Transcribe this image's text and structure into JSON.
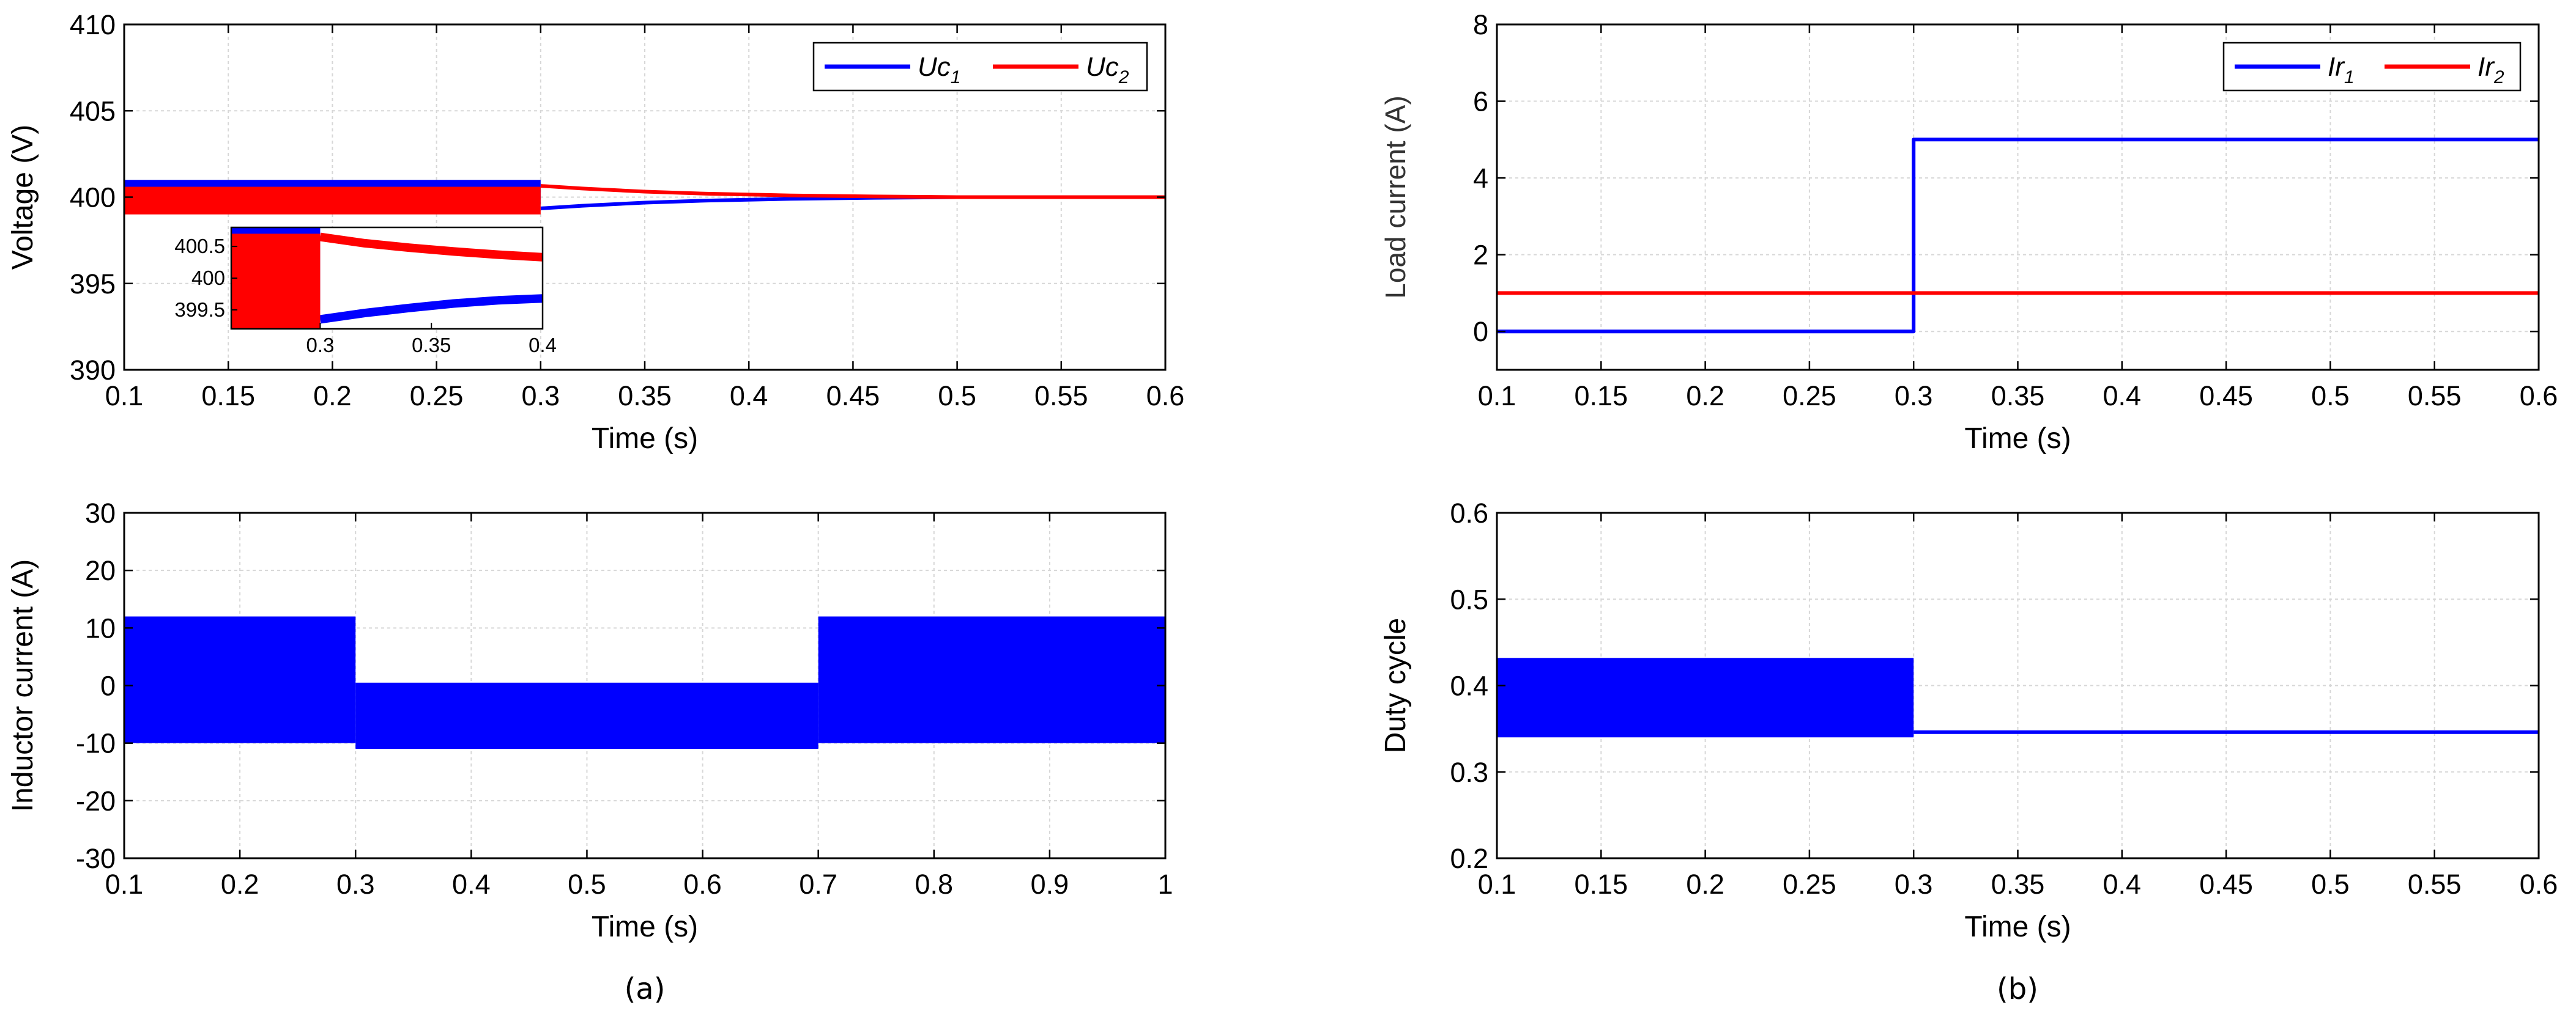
{
  "chart_data": [
    {
      "id": "voltage",
      "type": "line",
      "title": "",
      "xlabel": "Time (s)",
      "ylabel": "Voltage (V)",
      "xlim": [
        0.1,
        0.6
      ],
      "ylim": [
        390,
        410
      ],
      "xticks": [
        0.1,
        0.15,
        0.2,
        0.25,
        0.3,
        0.35,
        0.4,
        0.45,
        0.5,
        0.55,
        0.6
      ],
      "yticks": [
        390,
        395,
        400,
        405,
        410
      ],
      "xtick_labels": [
        "0.1",
        "0.15",
        "0.2",
        "0.25",
        "0.3",
        "0.35",
        "0.4",
        "0.45",
        "0.5",
        "0.55",
        "0.6"
      ],
      "ytick_labels": [
        "390",
        "395",
        "400",
        "405",
        "410"
      ],
      "grid": true,
      "legend": "top-right",
      "series": [
        {
          "name": "Uc",
          "sub": "1",
          "color": "#0000ff",
          "bands": [
            {
              "x0": 0.1,
              "x1": 0.3,
              "ymin": 399.6,
              "ymax": 401.0
            }
          ],
          "x": [
            0.3,
            0.32,
            0.35,
            0.38,
            0.42,
            0.46,
            0.5,
            0.6
          ],
          "values": [
            399.35,
            399.5,
            399.68,
            399.8,
            399.9,
            399.96,
            400.0,
            400.0
          ]
        },
        {
          "name": "Uc",
          "sub": "2",
          "color": "#ff0000",
          "bands": [
            {
              "x0": 0.1,
              "x1": 0.3,
              "ymin": 399.0,
              "ymax": 400.6
            }
          ],
          "x": [
            0.3,
            0.32,
            0.35,
            0.38,
            0.42,
            0.46,
            0.5,
            0.6
          ],
          "values": [
            400.65,
            400.5,
            400.32,
            400.2,
            400.1,
            400.04,
            400.0,
            400.0
          ]
        }
      ],
      "inset": {
        "xlim": [
          0.26,
          0.4
        ],
        "ylim": [
          399.2,
          400.8
        ],
        "xticks": [
          0.3,
          0.35,
          0.4
        ],
        "xtick_labels": [
          "0.3",
          "0.35",
          "0.4"
        ],
        "yticks": [
          399.5,
          400,
          400.5
        ],
        "ytick_labels": [
          "399.5",
          "400",
          "400.5"
        ],
        "series": [
          {
            "name": "Uc1",
            "color": "#0000ff",
            "bands": [
              {
                "x0": 0.26,
                "x1": 0.3,
                "ymin": 399.5,
                "ymax": 400.8
              }
            ],
            "x": [
              0.3,
              0.32,
              0.34,
              0.36,
              0.38,
              0.4
            ],
            "values": [
              399.35,
              399.45,
              399.53,
              399.6,
              399.65,
              399.68
            ]
          },
          {
            "name": "Uc2",
            "color": "#ff0000",
            "bands": [
              {
                "x0": 0.26,
                "x1": 0.3,
                "ymin": 399.2,
                "ymax": 400.7
              }
            ],
            "x": [
              0.3,
              0.32,
              0.34,
              0.36,
              0.38,
              0.4
            ],
            "values": [
              400.65,
              400.55,
              400.48,
              400.42,
              400.37,
              400.33
            ]
          }
        ]
      }
    },
    {
      "id": "inductor",
      "type": "line",
      "title": "",
      "xlabel": "Time (s)",
      "ylabel": "Inductor current (A)",
      "xlim": [
        0.1,
        1.0
      ],
      "ylim": [
        -30,
        30
      ],
      "xticks": [
        0.1,
        0.2,
        0.3,
        0.4,
        0.5,
        0.6,
        0.7,
        0.8,
        0.9,
        1.0
      ],
      "yticks": [
        -30,
        -20,
        -10,
        0,
        10,
        20,
        30
      ],
      "xtick_labels": [
        "0.1",
        "0.2",
        "0.3",
        "0.4",
        "0.5",
        "0.6",
        "0.7",
        "0.8",
        "0.9",
        "1"
      ],
      "ytick_labels": [
        "-30",
        "-20",
        "-10",
        "0",
        "10",
        "20",
        "30"
      ],
      "grid": true,
      "series": [
        {
          "name": "Inductor current",
          "color": "#0000ff",
          "bands": [
            {
              "x0": 0.1,
              "x1": 0.3,
              "ymin": -10,
              "ymax": 12
            },
            {
              "x0": 0.3,
              "x1": 0.7,
              "ymin": -11,
              "ymax": 0.5
            },
            {
              "x0": 0.7,
              "x1": 1.0,
              "ymin": -10,
              "ymax": 12
            }
          ]
        }
      ]
    },
    {
      "id": "load",
      "type": "line",
      "title": "",
      "xlabel": "Time (s)",
      "ylabel": "Load current (A)",
      "xlim": [
        0.1,
        0.6
      ],
      "ylim": [
        -1,
        8
      ],
      "xticks": [
        0.1,
        0.15,
        0.2,
        0.25,
        0.3,
        0.35,
        0.4,
        0.45,
        0.5,
        0.55,
        0.6
      ],
      "yticks": [
        0,
        2,
        4,
        6,
        8
      ],
      "xtick_labels": [
        "0.1",
        "0.15",
        "0.2",
        "0.25",
        "0.3",
        "0.35",
        "0.4",
        "0.45",
        "0.5",
        "0.55",
        "0.6"
      ],
      "ytick_labels": [
        "0",
        "2",
        "4",
        "6",
        "8"
      ],
      "grid": true,
      "legend": "top-right",
      "series": [
        {
          "name": "Ir",
          "sub": "1",
          "color": "#0000ff",
          "x": [
            0.1,
            0.3,
            0.3,
            0.6
          ],
          "values": [
            0,
            0,
            5,
            5
          ]
        },
        {
          "name": "Ir",
          "sub": "2",
          "color": "#ff0000",
          "x": [
            0.1,
            0.6
          ],
          "values": [
            1,
            1
          ]
        }
      ]
    },
    {
      "id": "duty",
      "type": "line",
      "title": "",
      "xlabel": "Time (s)",
      "ylabel": "Duty cycle",
      "xlim": [
        0.1,
        0.6
      ],
      "ylim": [
        0.2,
        0.6
      ],
      "xticks": [
        0.1,
        0.15,
        0.2,
        0.25,
        0.3,
        0.35,
        0.4,
        0.45,
        0.5,
        0.55,
        0.6
      ],
      "yticks": [
        0.2,
        0.3,
        0.4,
        0.5,
        0.6
      ],
      "xtick_labels": [
        "0.1",
        "0.15",
        "0.2",
        "0.25",
        "0.3",
        "0.35",
        "0.4",
        "0.45",
        "0.5",
        "0.55",
        "0.6"
      ],
      "ytick_labels": [
        "0.2",
        "0.3",
        "0.4",
        "0.5",
        "0.6"
      ],
      "grid": true,
      "series": [
        {
          "name": "Duty cycle",
          "color": "#0000ff",
          "bands": [
            {
              "x0": 0.1,
              "x1": 0.3,
              "ymin": 0.34,
              "ymax": 0.432
            }
          ],
          "x": [
            0.3,
            0.6
          ],
          "values": [
            0.346,
            0.346
          ]
        }
      ]
    }
  ],
  "captions": {
    "a": "(a)",
    "b": "(b)"
  }
}
